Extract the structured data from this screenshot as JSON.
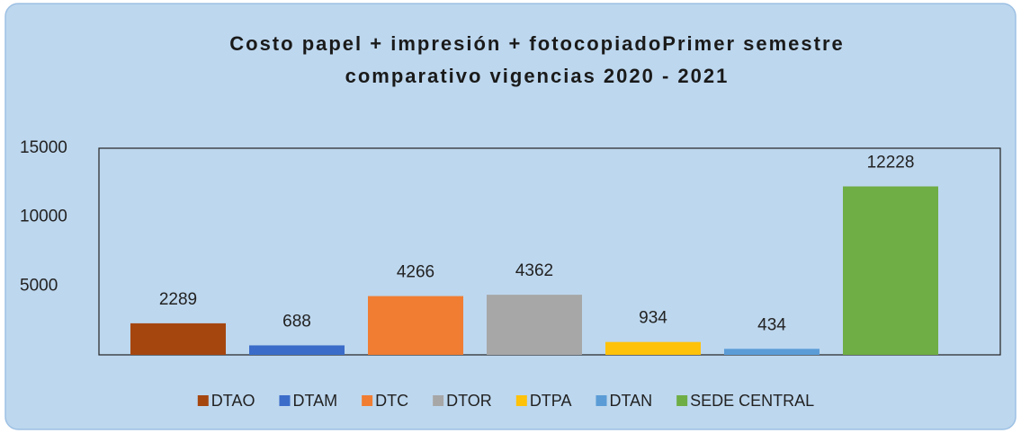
{
  "chart_data": {
    "type": "bar",
    "title": [
      "Costo papel + impresión + fotocopiadoPrimer semestre",
      "comparativo vigencias 2020 - 2021"
    ],
    "categories": [
      "DTAO",
      "DTAM",
      "DTC",
      "DTOR",
      "DTPA",
      "DTAN",
      "SEDE CENTRAL"
    ],
    "values": [
      2289,
      688,
      4266,
      4362,
      934,
      434,
      12228
    ],
    "colors": [
      "#a5460f",
      "#3b6cc9",
      "#f07d32",
      "#a7a7a7",
      "#ffc20a",
      "#5b9cd6",
      "#6fad45"
    ],
    "ylim": [
      0,
      15000
    ],
    "yticks": [
      5000,
      10000,
      15000
    ],
    "legend": "bottom"
  }
}
